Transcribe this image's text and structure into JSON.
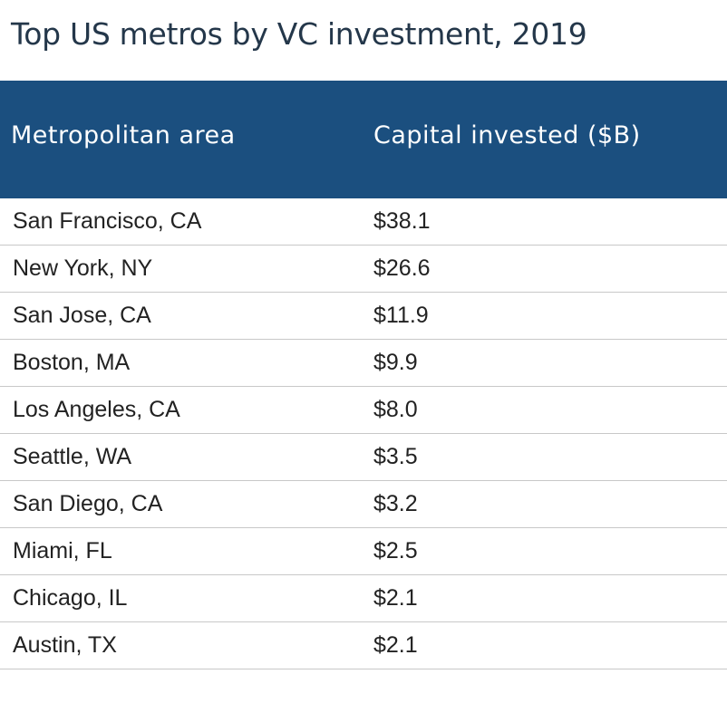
{
  "chart_data": {
    "type": "table",
    "title": "Top US metros by VC investment, 2019",
    "columns": [
      "Metropolitan area",
      "Capital invested ($B)"
    ],
    "rows": [
      [
        "San Francisco, CA",
        "$38.1"
      ],
      [
        "New York, NY",
        "$26.6"
      ],
      [
        "San Jose, CA",
        "$11.9"
      ],
      [
        "Boston, MA",
        "$9.9"
      ],
      [
        "Los Angeles, CA",
        "$8.0"
      ],
      [
        "Seattle, WA",
        "$3.5"
      ],
      [
        "San Diego, CA",
        "$3.2"
      ],
      [
        "Miami, FL",
        "$2.5"
      ],
      [
        "Chicago, IL",
        "$2.1"
      ],
      [
        "Austin, TX",
        "$2.1"
      ]
    ],
    "values": [
      38.1,
      26.6,
      11.9,
      9.9,
      8.0,
      3.5,
      3.2,
      2.5,
      2.1,
      2.1
    ],
    "colors": {
      "header_background": "#1b4f7f",
      "header_text": "#ffffff",
      "title_text": "#24374a",
      "row_divider": "#c8c8c8"
    }
  }
}
